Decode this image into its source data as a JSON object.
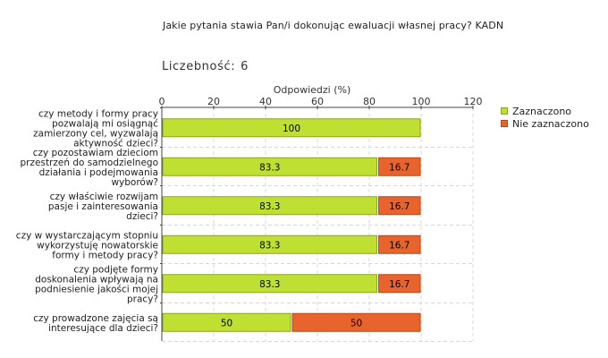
{
  "title": "Jakie pytania stawia Pan/i dokonując ewaluacji własnej pracy?  KADN",
  "count_label": "Liczebność:",
  "count_value": "6",
  "colors": {
    "zaznaczono": "#bfe033",
    "nie_zaznaczono": "#e8642c",
    "grid": "#d8d8d8"
  },
  "chart_data": {
    "type": "bar",
    "orientation": "horizontal",
    "stacked": true,
    "xlabel": "Odpowiedzi (%)",
    "xlim": [
      0,
      120
    ],
    "xticks": [
      0,
      20,
      40,
      60,
      80,
      100,
      120
    ],
    "legend_position": "right",
    "categories": [
      [
        "czy metody i formy pracy",
        "pozwalają mi osiągnąć",
        "zamierzony cel, wyzwalają",
        "aktywność dzieci?"
      ],
      [
        "czy pozostawiam dzieciom",
        "przestrzeń do samodzielnego",
        "działania i podejmowania",
        "wyborów?"
      ],
      [
        "czy właściwie rozwijam",
        "pasje i zainteresowania",
        "dzieci?"
      ],
      [
        "czy w wystarczającym stopniu",
        "wykorzystuję nowatorskie",
        "formy i metody pracy?"
      ],
      [
        "czy podjęte formy",
        "doskonalenia wpływają na",
        "podniesienie jakości mojej",
        "pracy?"
      ],
      [
        "czy prowadzone zajęcia są",
        "interesujące dla dzieci?"
      ]
    ],
    "series": [
      {
        "name": "Zaznaczono",
        "values": [
          100,
          83.3,
          83.3,
          83.3,
          83.3,
          50
        ]
      },
      {
        "name": "Nie zaznaczono",
        "values": [
          0,
          16.7,
          16.7,
          16.7,
          16.7,
          50
        ]
      }
    ]
  }
}
